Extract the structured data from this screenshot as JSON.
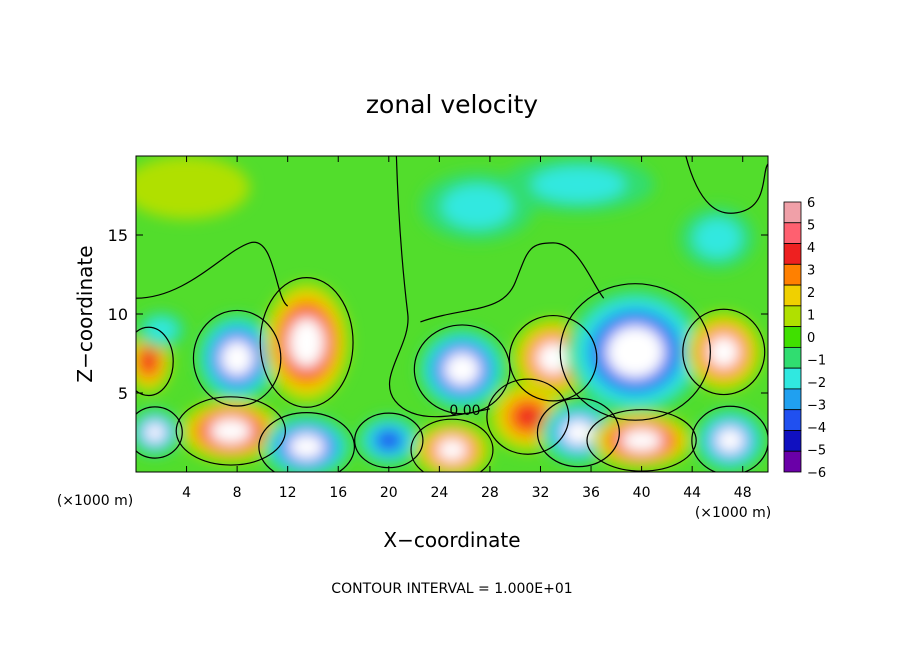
{
  "chart_data": {
    "type": "heatmap",
    "title": "zonal velocity",
    "xlabel": "X−coordinate",
    "ylabel": "Z−coordinate",
    "x_unit_left": "(×1000 m)",
    "x_unit_right": "(×1000 m)",
    "xlim": [
      0,
      50
    ],
    "ylim": [
      0,
      20
    ],
    "x_ticks": [
      4,
      8,
      12,
      16,
      20,
      24,
      28,
      32,
      36,
      40,
      44,
      48
    ],
    "y_ticks": [
      5,
      10,
      15
    ],
    "contour_label": "0.00",
    "footer": "CONTOUR INTERVAL = 1.000E+01",
    "colorbar": {
      "ticks": [
        "6",
        "5",
        "4",
        "3",
        "2",
        "1",
        "0",
        "−1",
        "−2",
        "−3",
        "−4",
        "−5",
        "−6"
      ],
      "colors": [
        "#f0a0a8",
        "#ff6070",
        "#ee2020",
        "#ff8000",
        "#f0d000",
        "#b0e000",
        "#40e000",
        "#30dd70",
        "#30e8e0",
        "#20a0f0",
        "#2050f0",
        "#1010c0",
        "#6a00a8"
      ]
    },
    "blobs": [
      {
        "x": 8,
        "z": 7.2,
        "rx": 3.2,
        "rz": 2.8,
        "value": -6
      },
      {
        "x": 13.5,
        "z": 8.2,
        "rx": 3.4,
        "rz": 3.8,
        "value": 6
      },
      {
        "x": 25.8,
        "z": 6.5,
        "rx": 3.5,
        "rz": 2.6,
        "value": -6
      },
      {
        "x": 33,
        "z": 7.2,
        "rx": 3.2,
        "rz": 2.5,
        "value": 5
      },
      {
        "x": 39.5,
        "z": 7.6,
        "rx": 5.5,
        "rz": 4.0,
        "value": -6
      },
      {
        "x": 46.5,
        "z": 7.6,
        "rx": 3.0,
        "rz": 2.5,
        "value": 5
      },
      {
        "x": 7.5,
        "z": 2.6,
        "rx": 4.0,
        "rz": 2.0,
        "value": 6
      },
      {
        "x": 13.5,
        "z": 1.6,
        "rx": 3.5,
        "rz": 2.0,
        "value": -6
      },
      {
        "x": 20,
        "z": 2.0,
        "rx": 2.5,
        "rz": 1.6,
        "value": -4
      },
      {
        "x": 25,
        "z": 1.4,
        "rx": 3.0,
        "rz": 1.8,
        "value": 5
      },
      {
        "x": 31,
        "z": 3.5,
        "rx": 3.0,
        "rz": 2.2,
        "value": 4
      },
      {
        "x": 35,
        "z": 2.5,
        "rx": 3.0,
        "rz": 2.0,
        "value": -5
      },
      {
        "x": 40,
        "z": 2.0,
        "rx": 4.0,
        "rz": 1.8,
        "value": 6
      },
      {
        "x": 47,
        "z": 2.0,
        "rx": 2.8,
        "rz": 2.0,
        "value": -5
      },
      {
        "x": 1.5,
        "z": 2.5,
        "rx": 2.0,
        "rz": 1.5,
        "value": -5
      },
      {
        "x": 1,
        "z": 7.0,
        "rx": 1.8,
        "rz": 2.0,
        "value": 4
      },
      {
        "x": 27,
        "z": 16.8,
        "rx": 4.5,
        "rz": 2.2,
        "value": -2
      },
      {
        "x": 35,
        "z": 18.2,
        "rx": 6.0,
        "rz": 1.8,
        "value": -2
      },
      {
        "x": 46,
        "z": 14.8,
        "rx": 3.0,
        "rz": 2.0,
        "value": -2
      },
      {
        "x": 4,
        "z": 18.0,
        "rx": 5.0,
        "rz": 2.0,
        "value": 1
      },
      {
        "x": 2,
        "z": 9.0,
        "rx": 2.0,
        "rz": 1.2,
        "value": -2
      }
    ]
  }
}
